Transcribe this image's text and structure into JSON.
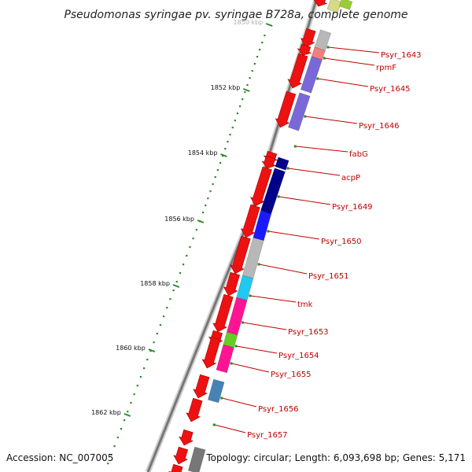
{
  "title": "Pseudomonas syringae pv. syringae B728a, complete genome",
  "footer": {
    "accession": "Accession: NC_007005",
    "summary": "Topology: circular; Length: 6,093,698 bp; Genes: 5,171"
  },
  "scale_labels": [
    "1850 kbp",
    "1852 kbp",
    "1854 kbp",
    "1856 kbp",
    "1858 kbp",
    "1860 kbp",
    "1862 kbp"
  ],
  "colors": {
    "cds": "#ee1111",
    "backbone": "#777777",
    "tick": "#2a8a2a",
    "label": "#c00000"
  },
  "genes": [
    {
      "label": "Psyr_1643",
      "color": "#b8b8b8"
    },
    {
      "label": "rpmF",
      "color": "#f07f7f"
    },
    {
      "label": "Psyr_1645",
      "color": "#7b68d8"
    },
    {
      "label": "Psyr_1646",
      "color": "#7b68d8"
    },
    {
      "label": "fabG",
      "color": ""
    },
    {
      "label": "acpP",
      "color": "#00008b"
    },
    {
      "label": "Psyr_1649",
      "color": "#00008b"
    },
    {
      "label": "Psyr_1650",
      "color": "#1a1aff"
    },
    {
      "label": "Psyr_1651",
      "color": "#b8b8b8"
    },
    {
      "label": "tmk",
      "color": "#22c8f0"
    },
    {
      "label": "Psyr_1653",
      "color": "#ff1493"
    },
    {
      "label": "Psyr_1654",
      "color": "#66cc22"
    },
    {
      "label": "Psyr_1655",
      "color": "#ff1493"
    },
    {
      "label": "Psyr_1656",
      "color": "#4682b4"
    },
    {
      "label": "Psyr_1657",
      "color": ""
    }
  ]
}
